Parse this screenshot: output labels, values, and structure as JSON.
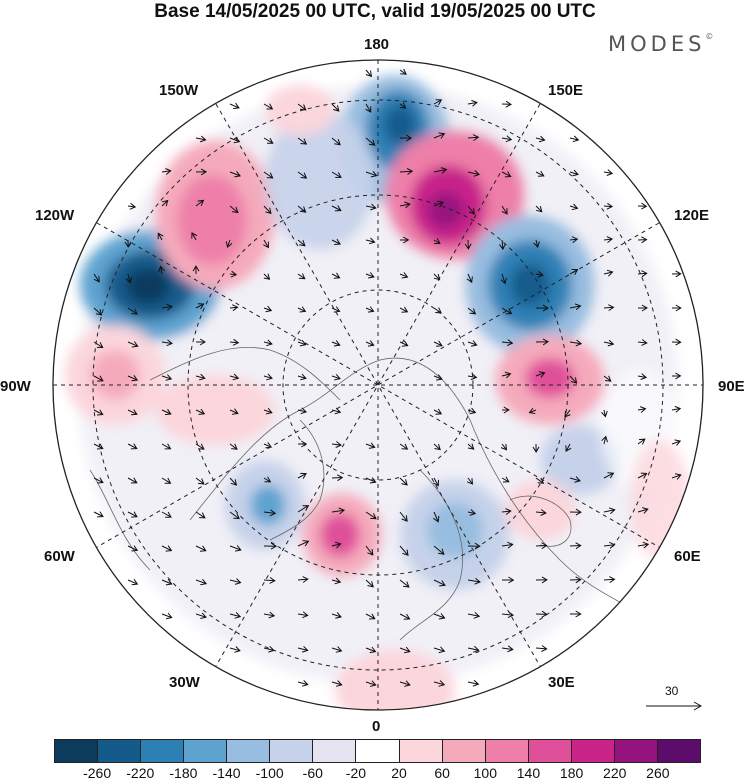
{
  "title": "Base 14/05/2025 00 UTC, valid 19/05/2025 00 UTC",
  "logo": "MODES",
  "logo_mark": "©",
  "longitude_labels": {
    "lon_180": "180",
    "lon_150e": "150E",
    "lon_120e": "120E",
    "lon_90e": "90E",
    "lon_60e": "60E",
    "lon_30e": "30E",
    "lon_0": "0",
    "lon_30w": "30W",
    "lon_60w": "60W",
    "lon_90w": "90W",
    "lon_120w": "120W",
    "lon_150w": "150W"
  },
  "vector_reference": {
    "value": "30"
  },
  "colorbar": {
    "colors": [
      "#0d3b5e",
      "#145b8c",
      "#2d80b5",
      "#5ea3d0",
      "#97bde0",
      "#c6d2ea",
      "#e6e4f1",
      "#ffffff",
      "#fbd6dc",
      "#f5aabc",
      "#ee7fa9",
      "#e0509a",
      "#c8248a",
      "#95137e",
      "#5e0c6c"
    ],
    "tick_labels": [
      "-260",
      "-220",
      "-180",
      "-140",
      "-100",
      "-60",
      "-20",
      "20",
      "60",
      "100",
      "140",
      "180",
      "220",
      "260"
    ]
  }
}
